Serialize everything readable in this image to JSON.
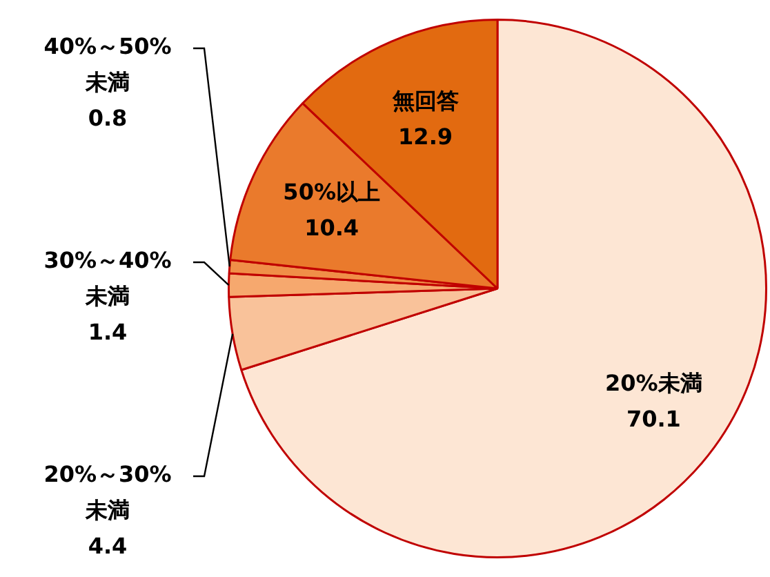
{
  "chart_data": {
    "type": "pie",
    "categories": [
      "20%未満",
      "20%～30%未満",
      "30%～40%未満",
      "40%～50%未満",
      "50%以上",
      "無回答"
    ],
    "values": [
      70.1,
      4.4,
      1.4,
      0.8,
      10.4,
      12.9
    ],
    "colors": [
      "#fde6d4",
      "#f9c29a",
      "#f6a86e",
      "#f08f48",
      "#ea7a2c",
      "#e26a10"
    ],
    "data_labels": true
  }
}
